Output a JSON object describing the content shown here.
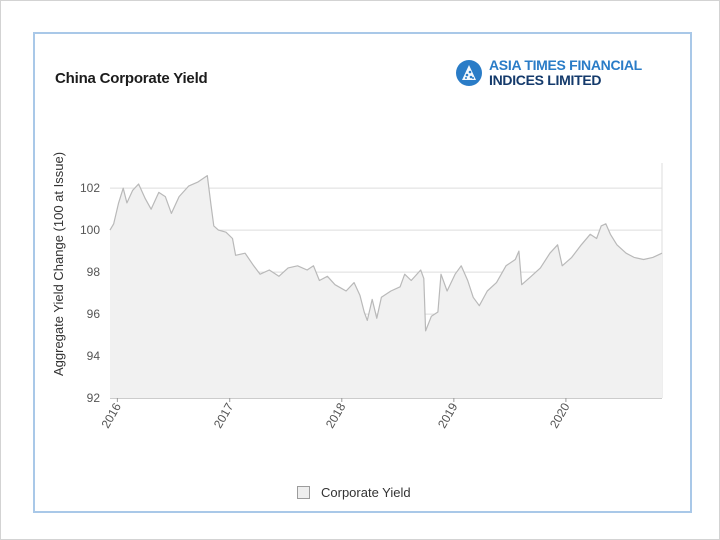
{
  "page": {
    "title": "China Corporate Yield",
    "logo": {
      "line1": "ASIA TIMES FINANCIAL",
      "line2": "INDICES LIMITED",
      "colors": {
        "primary": "#2a7cc7",
        "secondary": "#143a6b"
      }
    }
  },
  "legend": {
    "label": "Corporate Yield"
  },
  "chart_data": {
    "type": "area",
    "title": "China Corporate Yield",
    "xlabel": "",
    "ylabel": "Aggregate Yield Change (100 at Issue)",
    "ylim": [
      92,
      103.2
    ],
    "xlim": [
      "2015-12-08",
      "2020-11-09"
    ],
    "y_ticks": [
      92,
      94,
      96,
      98,
      100,
      102
    ],
    "x_ticks": [
      {
        "label": "2016",
        "date": "2016-01-01"
      },
      {
        "label": "2017",
        "date": "2017-01-01"
      },
      {
        "label": "2018",
        "date": "2018-01-01"
      },
      {
        "label": "2019",
        "date": "2019-01-01"
      },
      {
        "label": "2020",
        "date": "2020-01-01"
      }
    ],
    "grid": "horizontal",
    "legend_position": "bottom-center",
    "colors": {
      "fill": "#f1f1f1",
      "line": "#b9b9b9",
      "grid": "#dddddd"
    },
    "series": [
      {
        "name": "Corporate Yield",
        "points": [
          [
            "2015-12-08",
            100.0
          ],
          [
            "2015-12-20",
            100.3
          ],
          [
            "2016-01-05",
            101.3
          ],
          [
            "2016-01-20",
            102.0
          ],
          [
            "2016-02-01",
            101.3
          ],
          [
            "2016-02-20",
            101.9
          ],
          [
            "2016-03-10",
            102.2
          ],
          [
            "2016-04-01",
            101.5
          ],
          [
            "2016-04-20",
            101.0
          ],
          [
            "2016-05-15",
            101.8
          ],
          [
            "2016-06-05",
            101.6
          ],
          [
            "2016-06-25",
            100.8
          ],
          [
            "2016-07-20",
            101.6
          ],
          [
            "2016-08-20",
            102.1
          ],
          [
            "2016-09-20",
            102.3
          ],
          [
            "2016-10-20",
            102.6
          ],
          [
            "2016-11-01",
            101.2
          ],
          [
            "2016-11-10",
            100.2
          ],
          [
            "2016-11-25",
            100.0
          ],
          [
            "2016-12-20",
            99.9
          ],
          [
            "2017-01-10",
            99.6
          ],
          [
            "2017-01-20",
            98.8
          ],
          [
            "2017-02-20",
            98.9
          ],
          [
            "2017-03-20",
            98.3
          ],
          [
            "2017-04-10",
            97.9
          ],
          [
            "2017-05-10",
            98.1
          ],
          [
            "2017-06-10",
            97.8
          ],
          [
            "2017-07-10",
            98.2
          ],
          [
            "2017-08-10",
            98.3
          ],
          [
            "2017-09-10",
            98.1
          ],
          [
            "2017-10-01",
            98.3
          ],
          [
            "2017-10-20",
            97.6
          ],
          [
            "2017-11-15",
            97.8
          ],
          [
            "2017-12-10",
            97.4
          ],
          [
            "2018-01-15",
            97.1
          ],
          [
            "2018-02-10",
            97.5
          ],
          [
            "2018-03-01",
            96.9
          ],
          [
            "2018-03-15",
            96.1
          ],
          [
            "2018-03-25",
            95.7
          ],
          [
            "2018-04-10",
            96.7
          ],
          [
            "2018-04-25",
            95.8
          ],
          [
            "2018-05-10",
            96.8
          ],
          [
            "2018-06-10",
            97.1
          ],
          [
            "2018-07-10",
            97.3
          ],
          [
            "2018-07-25",
            97.9
          ],
          [
            "2018-08-15",
            97.6
          ],
          [
            "2018-09-15",
            98.1
          ],
          [
            "2018-09-25",
            97.7
          ],
          [
            "2018-10-01",
            95.2
          ],
          [
            "2018-10-20",
            95.9
          ],
          [
            "2018-11-10",
            96.1
          ],
          [
            "2018-11-20",
            97.9
          ],
          [
            "2018-12-10",
            97.1
          ],
          [
            "2019-01-05",
            97.9
          ],
          [
            "2019-01-25",
            98.3
          ],
          [
            "2019-02-15",
            97.6
          ],
          [
            "2019-03-05",
            96.8
          ],
          [
            "2019-03-25",
            96.4
          ],
          [
            "2019-04-20",
            97.1
          ],
          [
            "2019-05-20",
            97.5
          ],
          [
            "2019-06-20",
            98.3
          ],
          [
            "2019-07-20",
            98.6
          ],
          [
            "2019-08-01",
            99.0
          ],
          [
            "2019-08-10",
            97.4
          ],
          [
            "2019-09-10",
            97.8
          ],
          [
            "2019-10-10",
            98.2
          ],
          [
            "2019-11-10",
            98.9
          ],
          [
            "2019-12-05",
            99.3
          ],
          [
            "2019-12-20",
            98.3
          ],
          [
            "2020-01-20",
            98.7
          ],
          [
            "2020-02-20",
            99.3
          ],
          [
            "2020-03-20",
            99.8
          ],
          [
            "2020-04-10",
            99.6
          ],
          [
            "2020-04-25",
            100.2
          ],
          [
            "2020-05-10",
            100.3
          ],
          [
            "2020-05-25",
            99.8
          ],
          [
            "2020-06-15",
            99.3
          ],
          [
            "2020-07-15",
            98.9
          ],
          [
            "2020-08-10",
            98.7
          ],
          [
            "2020-09-10",
            98.6
          ],
          [
            "2020-10-10",
            98.7
          ],
          [
            "2020-11-09",
            98.9
          ]
        ]
      }
    ]
  }
}
